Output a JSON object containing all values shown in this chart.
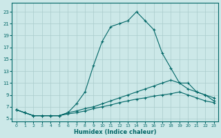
{
  "title": "",
  "xlabel": "Humidex (Indice chaleur)",
  "ylabel": "",
  "bg_color": "#cce8e8",
  "grid_color": "#aacccc",
  "line_color": "#006666",
  "xlim": [
    -0.5,
    23.5
  ],
  "ylim": [
    4.5,
    24.5
  ],
  "xticks": [
    0,
    1,
    2,
    3,
    4,
    5,
    6,
    7,
    8,
    9,
    10,
    11,
    12,
    13,
    14,
    15,
    16,
    17,
    18,
    19,
    20,
    21,
    22,
    23
  ],
  "yticks": [
    5,
    7,
    9,
    11,
    13,
    15,
    17,
    19,
    21,
    23
  ],
  "series": [
    [
      6.5,
      6.0,
      5.5,
      5.5,
      5.5,
      5.5,
      6.0,
      7.5,
      9.5,
      14.0,
      18.0,
      20.5,
      21.0,
      21.5,
      23.0,
      21.5,
      20.0,
      16.0,
      13.5,
      11.0,
      11.0,
      9.5,
      9.0,
      8.0
    ],
    [
      6.5,
      6.0,
      5.5,
      5.5,
      5.5,
      5.5,
      6.0,
      6.3,
      6.7,
      7.0,
      7.5,
      8.0,
      8.5,
      9.0,
      9.5,
      10.0,
      10.5,
      11.0,
      11.5,
      11.0,
      10.0,
      9.5,
      9.0,
      8.5
    ],
    [
      6.5,
      6.0,
      5.5,
      5.5,
      5.5,
      5.5,
      5.8,
      6.0,
      6.3,
      6.7,
      7.0,
      7.3,
      7.7,
      8.0,
      8.3,
      8.5,
      8.8,
      9.0,
      9.2,
      9.5,
      9.0,
      8.5,
      8.0,
      7.7
    ]
  ]
}
